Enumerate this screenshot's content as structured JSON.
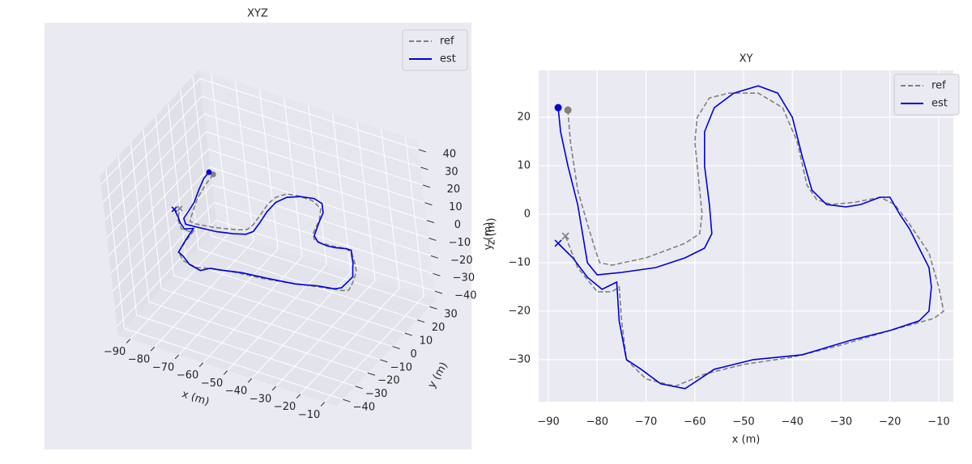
{
  "chart_data": [
    {
      "type": "line3d",
      "title": "XYZ",
      "xlabel": "x (m)",
      "ylabel": "y (m)",
      "zlabel": "z (m)",
      "xlim": [
        -95,
        -5
      ],
      "ylim": [
        -45,
        35
      ],
      "zlim": [
        -45,
        45
      ],
      "xticks": [
        {
          "value": -90,
          "label": "−90"
        },
        {
          "value": -80,
          "label": "−80"
        },
        {
          "value": -70,
          "label": "−70"
        },
        {
          "value": -60,
          "label": "−60"
        },
        {
          "value": -50,
          "label": "−50"
        },
        {
          "value": -40,
          "label": "−40"
        },
        {
          "value": -30,
          "label": "−30"
        },
        {
          "value": -20,
          "label": "−20"
        },
        {
          "value": -10,
          "label": "−10"
        }
      ],
      "yticks": [
        {
          "value": -40,
          "label": "−40"
        },
        {
          "value": -30,
          "label": "−30"
        },
        {
          "value": -20,
          "label": "−20"
        },
        {
          "value": -10,
          "label": "−10"
        },
        0,
        10,
        20,
        30
      ],
      "zticks": [
        {
          "value": -40,
          "label": "−40"
        },
        {
          "value": -30,
          "label": "−30"
        },
        {
          "value": -20,
          "label": "−20"
        },
        {
          "value": -10,
          "label": "−10"
        },
        0,
        10,
        20,
        30,
        40
      ],
      "series": [
        {
          "name": "ref",
          "color": "#808080",
          "dashed": true,
          "x": [
            -86,
            -85.5,
            -84,
            -82,
            -80.5,
            -79.5,
            -77,
            -70,
            -62,
            -59,
            -58.5,
            -59,
            -60,
            -59.5,
            -57,
            -53,
            -47,
            -42,
            -39,
            -37,
            -35,
            -32,
            -27,
            -22,
            -19,
            -16,
            -12,
            -10,
            -9,
            -11,
            -20,
            -30,
            -40,
            -50,
            -58,
            -64,
            -70,
            -74,
            -75,
            -75.5,
            -77,
            -80,
            -84,
            -86.5
          ],
          "y": [
            21.5,
            15,
            5,
            -2,
            -7,
            -10,
            -10.5,
            -9,
            -6,
            -4,
            0,
            5,
            15,
            20,
            24,
            25,
            25,
            22,
            15,
            6,
            3,
            2,
            2.5,
            3.5,
            2,
            -2,
            -8,
            -15,
            -20,
            -21.5,
            -24,
            -27,
            -29.5,
            -31,
            -33,
            -35.5,
            -34,
            -30,
            -22,
            -15,
            -16,
            -16,
            -11,
            -4.5
          ],
          "z": [
            0,
            0,
            0,
            0,
            0,
            0,
            0,
            0,
            0,
            0,
            0,
            0,
            0,
            0,
            0,
            0,
            0,
            0,
            0,
            0,
            0,
            0,
            0,
            0,
            0,
            0,
            0,
            0,
            0,
            0,
            0,
            0,
            0,
            0,
            0,
            0,
            0,
            0,
            0,
            0,
            0,
            0,
            0,
            0
          ]
        },
        {
          "name": "est",
          "color": "#0000dd",
          "dashed": false,
          "x": [
            -88,
            -87.5,
            -86,
            -84,
            -83,
            -82,
            -80,
            -75,
            -68,
            -62,
            -58,
            -56.5,
            -57,
            -58,
            -58,
            -56,
            -52,
            -47,
            -43,
            -40,
            -38,
            -36,
            -33,
            -29,
            -26,
            -22,
            -20,
            -18,
            -16,
            -14,
            -12,
            -11.5,
            -12,
            -14,
            -20,
            -28,
            -38,
            -48,
            -56,
            -59,
            -62,
            -67,
            -71,
            -74,
            -75.5,
            -76,
            -79,
            -82,
            -85,
            -88
          ],
          "y": [
            22,
            17,
            10,
            2,
            -4,
            -10,
            -12.5,
            -12,
            -11,
            -9,
            -7,
            -4,
            2,
            10,
            17,
            22,
            25,
            26.5,
            25,
            20,
            12,
            5,
            2,
            1.5,
            2,
            3.5,
            3.5,
            0,
            -3,
            -7,
            -11,
            -15,
            -20,
            -22,
            -24,
            -26,
            -29,
            -30,
            -32,
            -34,
            -36,
            -35,
            -32,
            -30,
            -22,
            -14,
            -15.5,
            -13,
            -9,
            -6
          ],
          "z": [
            0,
            0.5,
            0,
            -0.5,
            0,
            0.5,
            0,
            0,
            0,
            0,
            0,
            0,
            0,
            0,
            0,
            0,
            0,
            0,
            0,
            0,
            0,
            0,
            0,
            0,
            0,
            0,
            0,
            0.5,
            -0.5,
            0.5,
            -0.5,
            0.5,
            0,
            0,
            0.5,
            -0.5,
            0.5,
            0,
            -0.5,
            0.5,
            -0.5,
            0,
            0.5,
            0,
            -0.5,
            0.5,
            0,
            0.5,
            -0.5,
            0
          ]
        }
      ]
    },
    {
      "type": "line",
      "title": "XY",
      "xlabel": "x (m)",
      "ylabel": "y (m)",
      "grid": true,
      "xlim": [
        -92,
        -7
      ],
      "ylim": [
        -38.7,
        29.7
      ],
      "xticks": [
        {
          "value": -90,
          "label": "−90"
        },
        {
          "value": -80,
          "label": "−80"
        },
        {
          "value": -70,
          "label": "−70"
        },
        {
          "value": -60,
          "label": "−60"
        },
        {
          "value": -50,
          "label": "−50"
        },
        {
          "value": -40,
          "label": "−40"
        },
        {
          "value": -30,
          "label": "−30"
        },
        {
          "value": -20,
          "label": "−20"
        },
        {
          "value": -10,
          "label": "−10"
        }
      ],
      "yticks": [
        {
          "value": -30,
          "label": "−30"
        },
        {
          "value": -20,
          "label": "−20"
        },
        {
          "value": -10,
          "label": "−10"
        },
        0,
        10,
        20
      ],
      "series": [
        {
          "name": "ref",
          "color": "#808080",
          "dashed": true,
          "x": [
            -86,
            -85.5,
            -84,
            -82,
            -80.5,
            -79.5,
            -77,
            -70,
            -62,
            -59,
            -58.5,
            -59,
            -60,
            -59.5,
            -57,
            -53,
            -47,
            -42,
            -39,
            -37,
            -35,
            -32,
            -27,
            -22,
            -19,
            -16,
            -12,
            -10,
            -9,
            -11,
            -20,
            -30,
            -40,
            -50,
            -58,
            -64,
            -70,
            -74,
            -75,
            -75.5,
            -77,
            -80,
            -84,
            -86.5
          ],
          "y": [
            21.5,
            15,
            5,
            -2,
            -7,
            -10,
            -10.5,
            -9,
            -6,
            -4,
            0,
            5,
            15,
            20,
            24,
            25,
            25,
            22,
            15,
            6,
            3,
            2,
            2.5,
            3.5,
            2,
            -2,
            -8,
            -15,
            -20,
            -21.5,
            -24,
            -27,
            -29.5,
            -31,
            -33,
            -35.5,
            -34,
            -30,
            -22,
            -15,
            -16,
            -16,
            -11,
            -4.5
          ]
        },
        {
          "name": "est",
          "color": "#0000dd",
          "dashed": false,
          "x": [
            -88,
            -87.5,
            -86,
            -84,
            -83,
            -82,
            -80,
            -75,
            -68,
            -62,
            -58,
            -56.5,
            -57,
            -58,
            -58,
            -56,
            -52,
            -47,
            -43,
            -40,
            -38,
            -36,
            -33,
            -29,
            -26,
            -22,
            -20,
            -18,
            -16,
            -14,
            -12,
            -11.5,
            -12,
            -14,
            -20,
            -28,
            -38,
            -48,
            -56,
            -59,
            -62,
            -67,
            -71,
            -74,
            -75.5,
            -76,
            -79,
            -82,
            -85,
            -88
          ],
          "y": [
            22,
            17,
            10,
            2,
            -4,
            -10,
            -12.5,
            -12,
            -11,
            -9,
            -7,
            -4,
            2,
            10,
            17,
            22,
            25,
            26.5,
            25,
            20,
            12,
            5,
            2,
            1.5,
            2,
            3.5,
            3.5,
            0,
            -3,
            -7,
            -11,
            -15,
            -20,
            -22,
            -24,
            -26,
            -29,
            -30,
            -32,
            -34,
            -36,
            -35,
            -32,
            -30,
            -22,
            -14,
            -15.5,
            -13,
            -9,
            -6
          ]
        }
      ]
    }
  ]
}
